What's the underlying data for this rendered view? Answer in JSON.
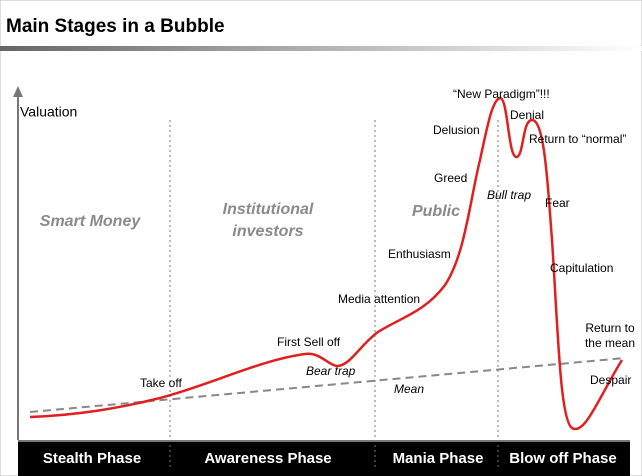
{
  "header": {
    "title": "Main Stages in a Bubble"
  },
  "axis_label": "Valuation",
  "groups": [
    "Smart Money",
    "Institutional investors",
    "Public"
  ],
  "labels": [
    "“New Paradigm”!!!",
    "Denial",
    "Delusion",
    "Return to “normal”",
    "Greed",
    "Bull trap",
    "Fear",
    "Enthusiasm",
    "Capitulation",
    "Media attention",
    "First Sell off",
    "Bear trap",
    "Return to the mean",
    "Take off",
    "Mean",
    "Despair"
  ],
  "phases": [
    "Stealth Phase",
    "Awareness Phase",
    "Mania Phase",
    "Blow off Phase"
  ]
}
